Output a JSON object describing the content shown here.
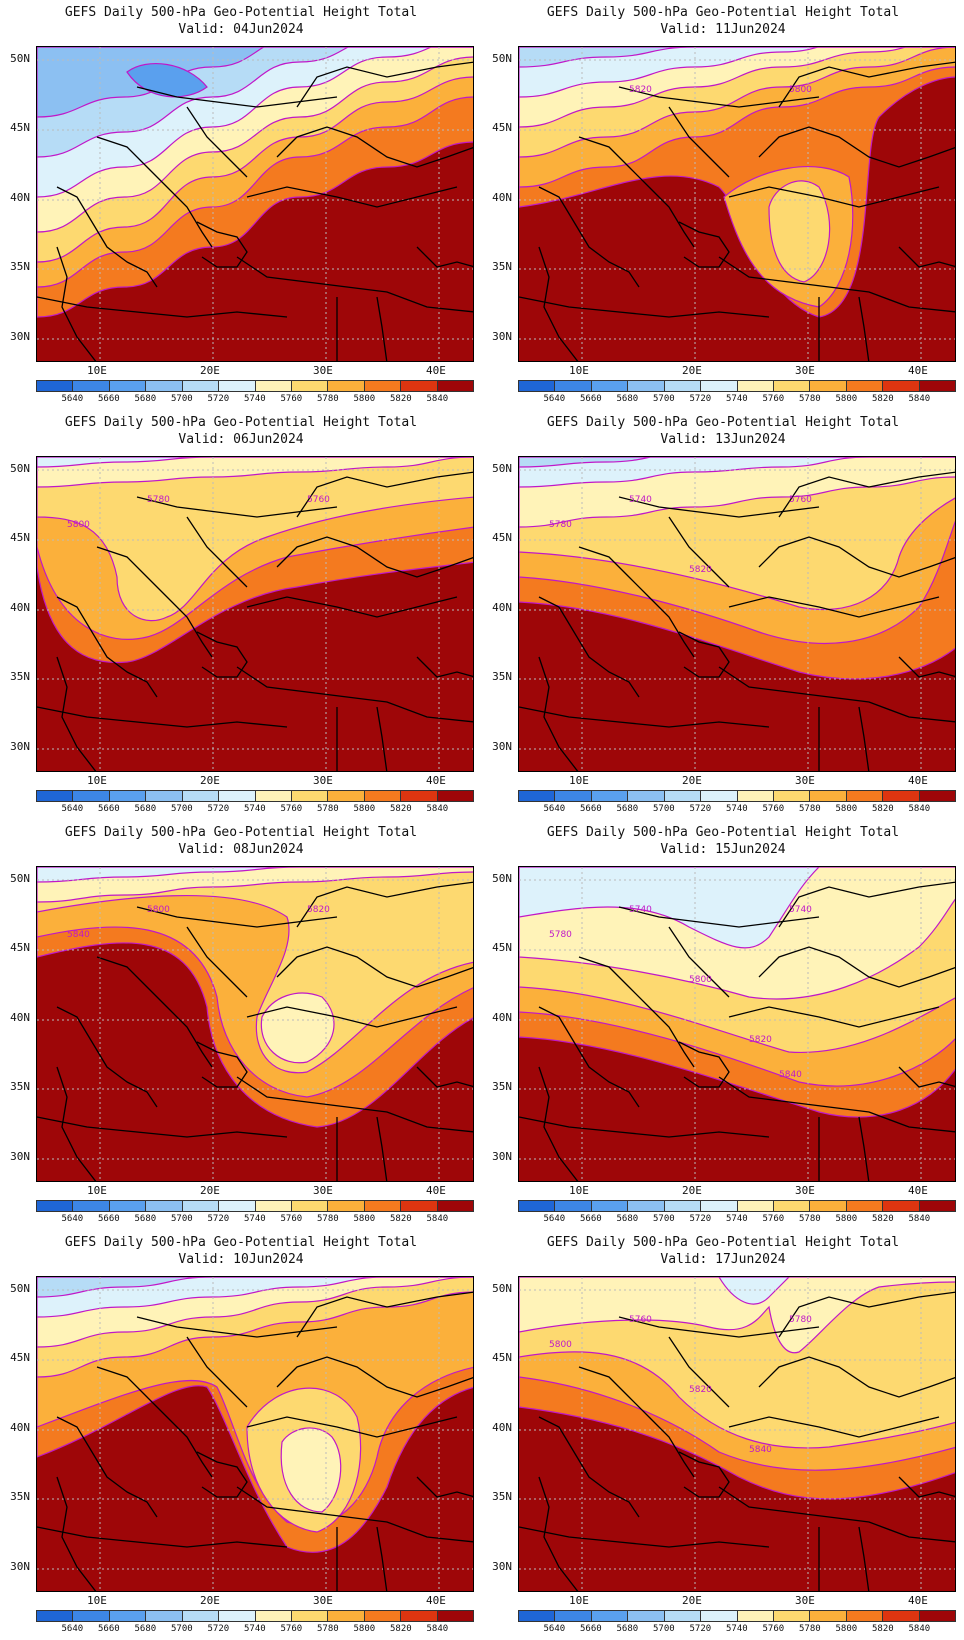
{
  "panels": [
    {
      "title": "GEFS Daily 500-hPa Geo-Potential Height Total",
      "valid": "Valid: 04Jun2024",
      "labels": [],
      "preset": 0
    },
    {
      "title": "GEFS Daily 500-hPa Geo-Potential Height Total",
      "valid": "Valid: 11Jun2024",
      "labels": [
        "5820",
        "5800"
      ],
      "preset": 1
    },
    {
      "title": "GEFS Daily 500-hPa Geo-Potential Height Total",
      "valid": "Valid: 06Jun2024",
      "labels": [
        "5780",
        "5760",
        "5800"
      ],
      "preset": 2
    },
    {
      "title": "GEFS Daily 500-hPa Geo-Potential Height Total",
      "valid": "Valid: 13Jun2024",
      "labels": [
        "5740",
        "5760",
        "5780",
        "5820"
      ],
      "preset": 3
    },
    {
      "title": "GEFS Daily 500-hPa Geo-Potential Height Total",
      "valid": "Valid: 08Jun2024",
      "labels": [
        "5800",
        "5820",
        "5840"
      ],
      "preset": 4
    },
    {
      "title": "GEFS Daily 500-hPa Geo-Potential Height Total",
      "valid": "Valid: 15Jun2024",
      "labels": [
        "5740",
        "5740",
        "5780",
        "5800",
        "5820",
        "5840"
      ],
      "preset": 5
    },
    {
      "title": "GEFS Daily 500-hPa Geo-Potential Height Total",
      "valid": "Valid: 10Jun2024",
      "labels": [],
      "preset": 6
    },
    {
      "title": "GEFS Daily 500-hPa Geo-Potential Height Total",
      "valid": "Valid: 17Jun2024",
      "labels": [
        "5760",
        "5780",
        "5800",
        "5820",
        "5840"
      ],
      "preset": 7
    }
  ],
  "lat_labels": [
    "50N",
    "45N",
    "40N",
    "35N",
    "30N"
  ],
  "lon_labels": [
    "10E",
    "20E",
    "30E",
    "40E"
  ],
  "colorbar": {
    "labels": [
      "5640",
      "5660",
      "5680",
      "5700",
      "5720",
      "5740",
      "5760",
      "5780",
      "5800",
      "5820",
      "5840"
    ],
    "colors": [
      "#1f66d6",
      "#3d86e6",
      "#5aa0ee",
      "#8cc0f2",
      "#b6dcf6",
      "#ddf2fb",
      "#fff3b8",
      "#fdd970",
      "#fbb03b",
      "#f47a1f",
      "#de3510",
      "#9e0608"
    ]
  },
  "contour_color": "#c018c8"
}
